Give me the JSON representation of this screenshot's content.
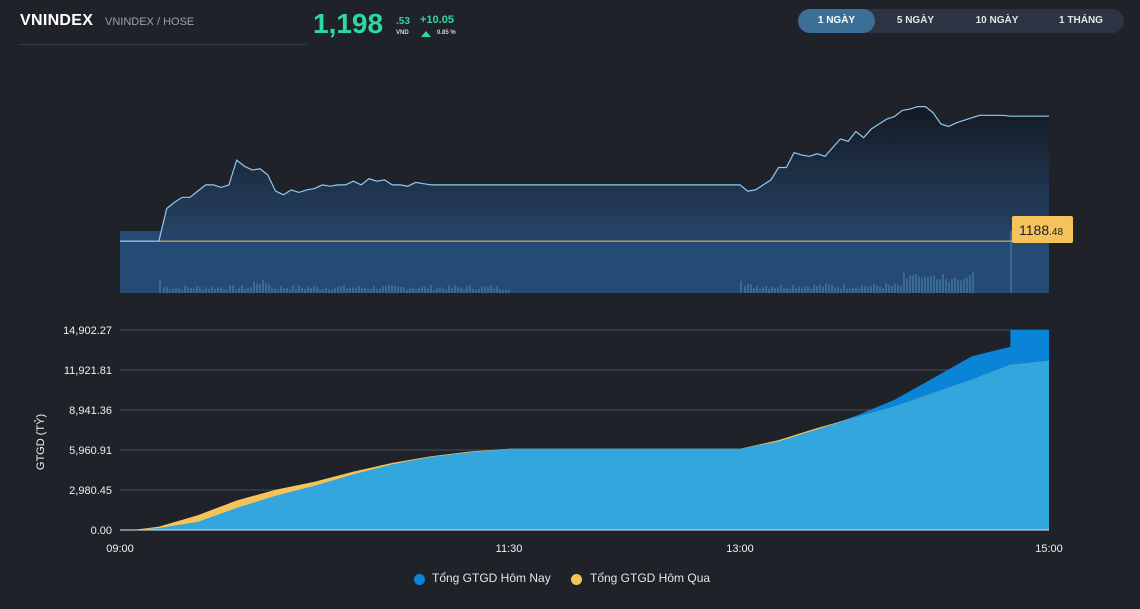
{
  "header": {
    "ticker": "VNINDEX",
    "exchange": "VNINDEX / HOSE",
    "price_int": "1,198",
    "price_dec": ".53",
    "price_unit": "VND",
    "change": "+10.05",
    "change_pct": "0.85 %",
    "colors": {
      "up": "#2ed8a3"
    }
  },
  "tabs": [
    {
      "label": "1 NGÀY",
      "active": true
    },
    {
      "label": "5 NGÀY",
      "active": false
    },
    {
      "label": "10 NGÀY",
      "active": false
    },
    {
      "label": "1 THÁNG",
      "active": false
    }
  ],
  "reference": {
    "int": "1188",
    "dec": ".48"
  },
  "chart_data": [
    {
      "type": "line",
      "title": "",
      "x_range": [
        "09:00",
        "15:00"
      ],
      "x": [
        "09:15",
        "09:18",
        "09:21",
        "09:24",
        "09:27",
        "09:30",
        "09:33",
        "09:36",
        "09:39",
        "09:42",
        "09:45",
        "09:48",
        "09:51",
        "09:54",
        "09:57",
        "10:00",
        "10:03",
        "10:06",
        "10:09",
        "10:12",
        "10:15",
        "10:18",
        "10:21",
        "10:24",
        "10:27",
        "10:30",
        "10:33",
        "10:36",
        "10:39",
        "10:42",
        "10:45",
        "10:48",
        "10:51",
        "10:54",
        "10:57",
        "11:00",
        "11:03",
        "11:06",
        "11:09",
        "11:12",
        "11:15",
        "11:18",
        "11:21",
        "11:24",
        "11:27",
        "11:30",
        "13:00",
        "13:03",
        "13:06",
        "13:09",
        "13:12",
        "13:15",
        "13:18",
        "13:21",
        "13:24",
        "13:27",
        "13:30",
        "13:33",
        "13:36",
        "13:39",
        "13:42",
        "13:45",
        "13:48",
        "13:51",
        "13:54",
        "13:57",
        "14:00",
        "14:03",
        "14:06",
        "14:09",
        "14:12",
        "14:15",
        "14:18",
        "14:21",
        "14:24",
        "14:27",
        "14:30",
        "14:33",
        "14:36",
        "14:39",
        "14:42",
        "14:45",
        "15:00"
      ],
      "series": [
        {
          "values": [
            1188.48,
            1191.1,
            1191.6,
            1192.0,
            1192.0,
            1192.5,
            1193.0,
            1193.0,
            1192.8,
            1193.0,
            1195.0,
            1194.5,
            1194.2,
            1194.3,
            1193.8,
            1192.5,
            1192.2,
            1192.6,
            1192.4,
            1192.6,
            1192.7,
            1193.0,
            1192.9,
            1193.0,
            1193.0,
            1193.3,
            1193.0,
            1193.5,
            1193.3,
            1193.4,
            1193.0,
            1193.0,
            1192.9,
            1193.2,
            1193.1,
            1193.0,
            1193.0,
            1193.0,
            1193.0,
            1193.0,
            1193.0,
            1193.0,
            1193.0,
            1193.0,
            1193.0,
            1193.0,
            1193.0,
            1192.5,
            1192.6,
            1193.0,
            1193.4,
            1194.4,
            1194.4,
            1195.6,
            1195.4,
            1195.3,
            1195.5,
            1195.3,
            1196.0,
            1196.7,
            1196.5,
            1197.3,
            1196.8,
            1197.5,
            1197.9,
            1198.3,
            1198.5,
            1199.0,
            1199.1,
            1199.3,
            1199.3,
            1198.8,
            1197.9,
            1197.7,
            1198.0,
            1198.2,
            1198.4,
            1198.6,
            1198.6,
            1198.6,
            1198.6,
            1198.53,
            1198.53
          ]
        }
      ],
      "reference_line": 1188.48,
      "y_range": [
        1184.3,
        1200.8
      ]
    },
    {
      "type": "area",
      "title": "",
      "xlabel": "",
      "ylabel": "GTGD (TỶ)",
      "x_ticks": [
        "09:00",
        "11:30",
        "13:00",
        "15:00"
      ],
      "y_ticks": [
        "0.00",
        "2,980.45",
        "5,960.91",
        "8,941.36",
        "11,921.81",
        "14,902.27"
      ],
      "ylim": [
        0,
        14902.27
      ],
      "grid": true,
      "legend_position": "bottom",
      "x": [
        "09:00",
        "09:05",
        "09:15",
        "09:30",
        "09:45",
        "10:00",
        "10:15",
        "10:30",
        "10:45",
        "11:00",
        "11:15",
        "11:30",
        "13:00",
        "13:15",
        "13:30",
        "13:45",
        "14:00",
        "14:15",
        "14:30",
        "14:45",
        "14:45",
        "15:00"
      ],
      "series": [
        {
          "name": "Tổng GTGD Hôm Nay",
          "color": "#0a84d6",
          "values": [
            0,
            0,
            150,
            600,
            1650,
            2550,
            3300,
            4150,
            4900,
            5450,
            5800,
            6050,
            6050,
            6600,
            7500,
            8500,
            9700,
            11300,
            12950,
            13650,
            14902.27,
            14902.27
          ]
        },
        {
          "name": "Tổng GTGD Hôm Qua",
          "color": "#f5c35a",
          "values": [
            0,
            0,
            250,
            1100,
            2200,
            3000,
            3600,
            4350,
            5000,
            5500,
            5850,
            6050,
            6050,
            6700,
            7600,
            8400,
            9200,
            10200,
            11200,
            12300,
            12300,
            12600
          ]
        }
      ]
    }
  ]
}
